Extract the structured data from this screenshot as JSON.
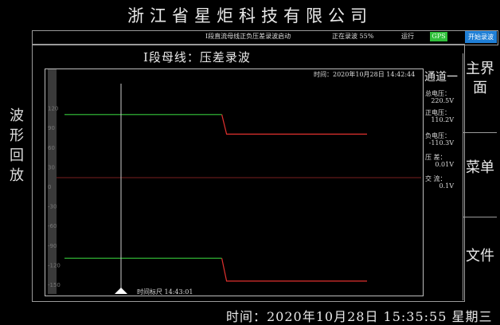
{
  "header": {
    "company": "浙江省星炬科技有限公司"
  },
  "status_bar": {
    "message": "I段直流母线正负压差录波启动",
    "recording": "正在录波 55%",
    "recording_progress": 55,
    "run_label": "运行",
    "gps_label": "GPS",
    "start_button": "开始录波"
  },
  "side_title": "波形回放",
  "chart_title": "I段母线：压差录波",
  "timestamp": "时间：2020年10月28日  14:42:44",
  "cursor_label": "时间标尺 14:43:01",
  "channel": {
    "title": "通道一",
    "rows": [
      {
        "label": "总电压：",
        "value": "220.5V"
      },
      {
        "label": "正电压：",
        "value": "110.2V"
      },
      {
        "label": "负电压：",
        "value": "-110.3V"
      },
      {
        "label": "压  差：",
        "value": "0.01V"
      },
      {
        "label": "交  流：",
        "value": "0.1V"
      }
    ]
  },
  "right_menu": {
    "main": "主界面",
    "menu": "菜单",
    "file": "文件"
  },
  "bottom_time": "时间：2020年10月28日  15:35:55  星期三",
  "colors": {
    "green_trace": "#35c83a",
    "red_trace": "#e0302e",
    "gps_bg": "#2fbf3a",
    "start_bg": "#1f7fd6"
  },
  "chart_data": {
    "type": "line",
    "ylim": [
      -150,
      150
    ],
    "yticks": [
      "120",
      "90",
      "60",
      "30",
      "0",
      "-30",
      "-60",
      "-90",
      "-120",
      "-150"
    ],
    "step_index": 0.52,
    "series": [
      {
        "values_before": 110,
        "values_after": 80
      },
      {
        "values_before": -110,
        "values_after": -145
      }
    ]
  }
}
